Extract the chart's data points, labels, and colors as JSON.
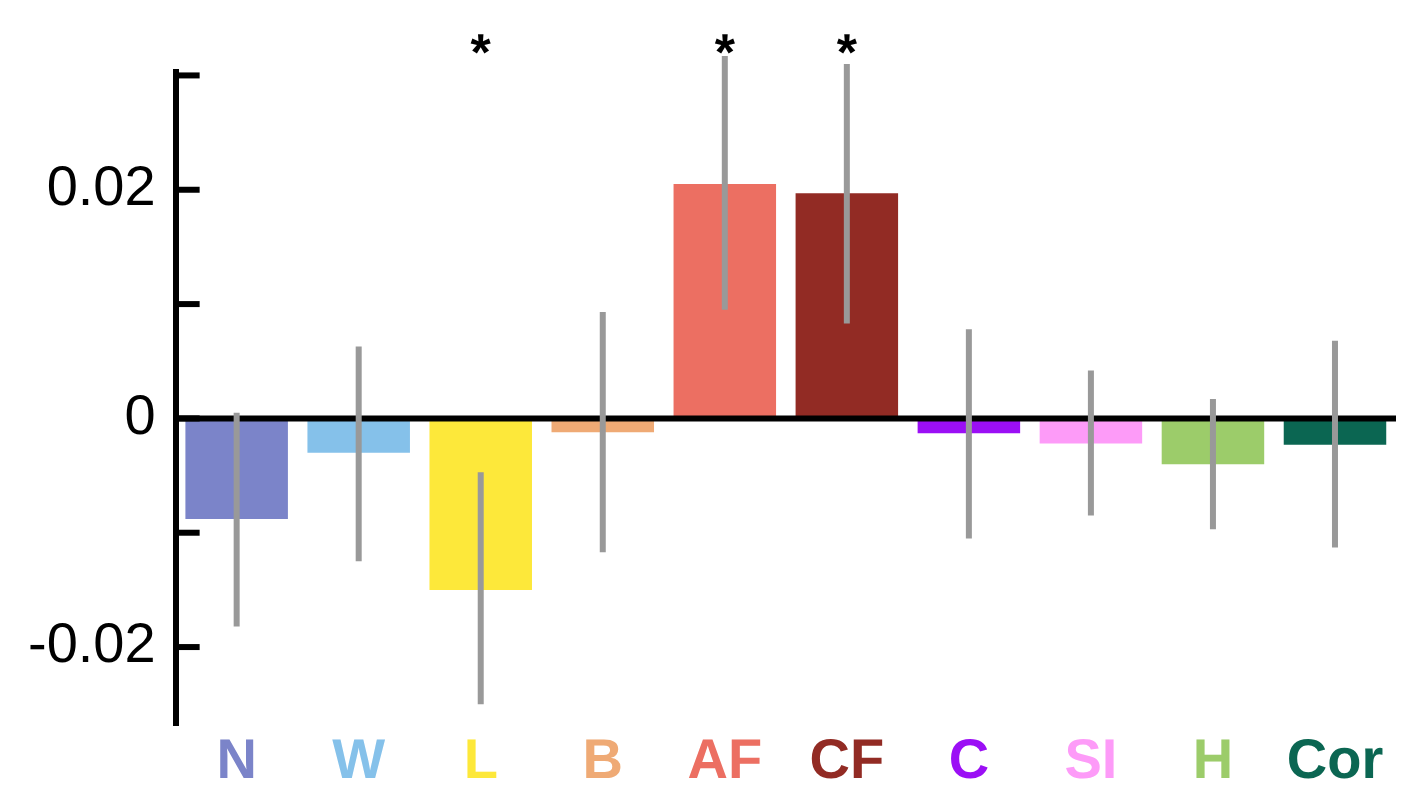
{
  "chart_data": {
    "type": "bar",
    "categories": [
      "N",
      "W",
      "L",
      "B",
      "AF",
      "CF",
      "C",
      "SI",
      "H",
      "Cor"
    ],
    "values": [
      -0.0088,
      -0.003,
      -0.015,
      -0.0012,
      0.0205,
      0.0197,
      -0.0013,
      -0.0022,
      -0.004,
      -0.0023
    ],
    "colors": [
      "#7b84c9",
      "#85c1ea",
      "#fde83a",
      "#efaa75",
      "#ec6f62",
      "#922b24",
      "#9b0ff5",
      "#fd9bf8",
      "#9ccc6a",
      "#0b6652"
    ],
    "errors": [
      [
        -0.0182,
        0.0005
      ],
      [
        -0.0125,
        0.0063
      ],
      [
        -0.025,
        -0.0047
      ],
      [
        -0.0117,
        0.0093
      ],
      [
        0.0095,
        0.0317
      ],
      [
        0.0083,
        0.031
      ],
      [
        -0.0105,
        0.0078
      ],
      [
        -0.0085,
        0.0042
      ],
      [
        -0.0097,
        0.0017
      ],
      [
        -0.0113,
        0.0068
      ]
    ],
    "ylim": [
      -0.0268,
      0.0303
    ],
    "yticks": [
      {
        "value": -0.02,
        "label": "-0.02"
      },
      {
        "value": -0.01,
        "label": null
      },
      {
        "value": 0,
        "label": "0"
      },
      {
        "value": 0.01,
        "label": null
      },
      {
        "value": 0.02,
        "label": "0.02"
      },
      {
        "value": 0.03,
        "label": null
      }
    ],
    "annotations": [
      "*",
      "*",
      "*"
    ],
    "legend": false
  }
}
